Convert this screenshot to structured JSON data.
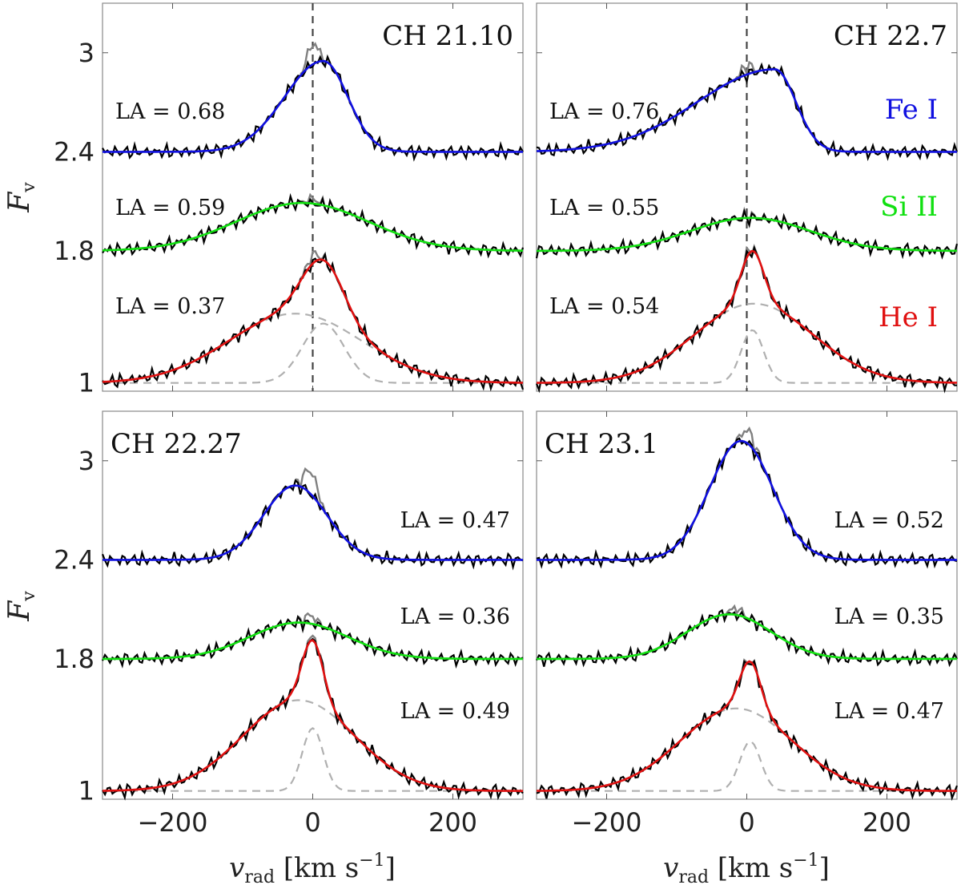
{
  "chart_data": {
    "type": "line",
    "xlabel": "v_rad [km s^-1]",
    "xlabel_parts": {
      "v": "v",
      "sub": "rad",
      "unit": " [km s",
      "exp": "−1",
      "close": "]"
    },
    "ylabel": "F_v",
    "ylabel_parts": {
      "main": "F",
      "sub": "v"
    },
    "xlim": [
      -300,
      300
    ],
    "ylim": [
      0.95,
      3.3
    ],
    "xticks": [
      -200,
      0,
      200
    ],
    "xtick_labels": [
      "−200",
      "0",
      "200"
    ],
    "yticks": [
      1,
      1.8,
      2.4,
      3
    ],
    "ytick_labels": [
      "1",
      "1.8",
      "2.4",
      "3"
    ],
    "line_labels": [
      "Fe I",
      "Si II",
      "He I"
    ],
    "colors": {
      "fe": "#1010e0",
      "si": "#10e010",
      "he": "#e01010",
      "obs": "#000000",
      "core": "#808080",
      "comp": "#b0b0b0",
      "frame": "#888888"
    },
    "panels": [
      {
        "title": "CH 21.10",
        "show_zero_line": true,
        "series": [
          {
            "name": "Fe I",
            "base": 2.4,
            "la_label": "LA = 0.68",
            "la": 0.68,
            "gaussians": [
              {
                "a": 0.55,
                "mu": 15,
                "s": 55,
                "sr": 35
              }
            ],
            "core": {
              "a": 0.12,
              "mu": 0,
              "s": 8
            }
          },
          {
            "name": "Si II",
            "base": 1.8,
            "la_label": "LA = 0.59",
            "la": 0.59,
            "gaussians": [
              {
                "a": 0.29,
                "mu": -15,
                "s": 95
              }
            ],
            "core": {
              "a": 0.03,
              "mu": 0,
              "s": 8
            }
          },
          {
            "name": "He I",
            "base": 1.0,
            "la_label": "LA = 0.37",
            "la": 0.37,
            "gaussians": [
              {
                "a": 0.42,
                "mu": -25,
                "s": 95
              },
              {
                "a": 0.36,
                "mu": 15,
                "s": 30
              }
            ],
            "core": {
              "a": 0.05,
              "mu": 0,
              "s": 8
            }
          }
        ]
      },
      {
        "title": "CH 22.7",
        "show_zero_line": true,
        "show_legend": true,
        "series": [
          {
            "name": "Fe I",
            "base": 2.4,
            "la_label": "LA = 0.76",
            "la": 0.76,
            "gaussians": [
              {
                "a": 0.5,
                "mu": 40,
                "s": 110,
                "sr": 30
              }
            ],
            "core": {
              "a": 0.05,
              "mu": 0,
              "s": 8
            }
          },
          {
            "name": "Si II",
            "base": 1.8,
            "la_label": "LA = 0.55",
            "la": 0.55,
            "gaussians": [
              {
                "a": 0.2,
                "mu": 5,
                "s": 85
              }
            ],
            "core": {
              "a": 0.01,
              "mu": 0,
              "s": 8
            }
          },
          {
            "name": "He I",
            "base": 1.0,
            "la_label": "LA = 0.54",
            "la": 0.54,
            "gaussians": [
              {
                "a": 0.48,
                "mu": 10,
                "s": 85
              },
              {
                "a": 0.32,
                "mu": 8,
                "s": 16
              }
            ],
            "core": {
              "a": 0.02,
              "mu": 0,
              "s": 8
            }
          }
        ]
      },
      {
        "title": "CH 22.27",
        "show_zero_line": false,
        "series": [
          {
            "name": "Fe I",
            "base": 2.4,
            "la_label": "LA = 0.47",
            "la": 0.47,
            "gaussians": [
              {
                "a": 0.45,
                "mu": -25,
                "s": 45
              }
            ],
            "core": {
              "a": 0.14,
              "mu": -3,
              "s": 9
            }
          },
          {
            "name": "Si II",
            "base": 1.8,
            "la_label": "LA = 0.36",
            "la": 0.36,
            "gaussians": [
              {
                "a": 0.22,
                "mu": -20,
                "s": 70
              }
            ],
            "core": {
              "a": 0.05,
              "mu": -3,
              "s": 8
            }
          },
          {
            "name": "He I",
            "base": 1.0,
            "la_label": "LA = 0.49",
            "la": 0.49,
            "gaussians": [
              {
                "a": 0.55,
                "mu": -20,
                "s": 80
              },
              {
                "a": 0.38,
                "mu": 0,
                "s": 15
              }
            ],
            "core": {
              "a": 0.02,
              "mu": 0,
              "s": 8
            }
          }
        ]
      },
      {
        "title": "CH 23.1",
        "show_zero_line": false,
        "series": [
          {
            "name": "Fe I",
            "base": 2.4,
            "la_label": "LA = 0.52",
            "la": 0.52,
            "gaussians": [
              {
                "a": 0.72,
                "mu": -8,
                "s": 45
              }
            ],
            "core": {
              "a": 0.08,
              "mu": 2,
              "s": 8
            }
          },
          {
            "name": "Si II",
            "base": 1.8,
            "la_label": "LA = 0.35",
            "la": 0.35,
            "gaussians": [
              {
                "a": 0.27,
                "mu": -25,
                "s": 60
              }
            ],
            "core": {
              "a": 0.04,
              "mu": -15,
              "s": 8
            }
          },
          {
            "name": "He I",
            "base": 1.0,
            "la_label": "LA = 0.47",
            "la": 0.47,
            "gaussians": [
              {
                "a": 0.5,
                "mu": -15,
                "s": 80
              },
              {
                "a": 0.3,
                "mu": 5,
                "s": 15
              }
            ],
            "core": {
              "a": 0.01,
              "mu": 0,
              "s": 8
            }
          }
        ]
      }
    ]
  }
}
